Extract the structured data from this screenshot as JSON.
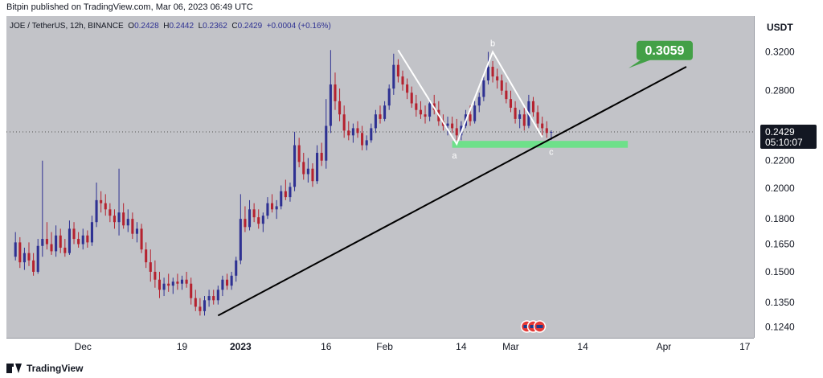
{
  "header": {
    "publisher": "Bitpin published on TradingView.com, Mar 06, 2023 06:49 UTC"
  },
  "footer": {
    "brand": "TradingView"
  },
  "colors": {
    "panel_bg": "#c2c3c8",
    "bull_body": "#2e3192",
    "bear_body": "#b5222f",
    "trendline": "#000000",
    "pattern_line": "#ffffff",
    "zone": "#6ee08a",
    "target_badge": "#43a047",
    "price_badge": "#131722"
  },
  "chart_data": {
    "type": "candlestick",
    "symbol_line": {
      "symbol": "JOE / TetherUS, 12h, BINANCE",
      "o_label": "O",
      "o_value": "0.2428",
      "h_label": "H",
      "h_value": "0.2442",
      "l_label": "L",
      "l_value": "0.2362",
      "c_label": "C",
      "c_value": "0.2429",
      "change": "+0.0004 (+0.16%)"
    },
    "y_axis": {
      "unit": "USDT",
      "ticks": [
        "0.3200",
        "0.2800",
        "0.2200",
        "0.2000",
        "0.1800",
        "0.1650",
        "0.1500",
        "0.1350",
        "0.1240"
      ],
      "tick_values": [
        0.32,
        0.28,
        0.22,
        0.2,
        0.18,
        0.165,
        0.15,
        0.135,
        0.124
      ],
      "range": [
        0.1195,
        0.362
      ]
    },
    "x_axis": {
      "ticks": [
        "Dec",
        "19",
        "2023",
        "16",
        "Feb",
        "14",
        "Mar",
        "14",
        "Apr",
        "17"
      ],
      "tick_index": [
        15,
        37,
        50,
        69,
        82,
        99,
        110,
        126,
        144,
        162
      ],
      "range": [
        -2,
        164
      ]
    },
    "last_price": {
      "value": 0.2429,
      "label": "0.2429",
      "countdown": "05:10:07"
    },
    "target": {
      "value": 0.3059,
      "label": "0.3059"
    },
    "pattern_labels": [
      "a",
      "b",
      "c"
    ],
    "pattern_points": [
      {
        "i": 85,
        "v": 0.322
      },
      {
        "i": 98,
        "v": 0.233
      },
      {
        "i": 106,
        "v": 0.32
      },
      {
        "i": 117,
        "v": 0.2385
      }
    ],
    "pattern_label_points": [
      {
        "i": 97.5,
        "v": 0.224
      },
      {
        "i": 106,
        "v": 0.33
      },
      {
        "i": 119,
        "v": 0.227
      }
    ],
    "trendline": [
      {
        "i": 45,
        "v": 0.129
      },
      {
        "i": 149,
        "v": 0.304
      }
    ],
    "support_zone": {
      "i_start": 97,
      "i_end": 136,
      "v_low": 0.23,
      "v_high": 0.2355
    },
    "candles": [
      [
        0.158,
        0.172,
        0.156,
        0.166
      ],
      [
        0.166,
        0.169,
        0.152,
        0.155
      ],
      [
        0.155,
        0.163,
        0.151,
        0.16
      ],
      [
        0.16,
        0.166,
        0.153,
        0.156
      ],
      [
        0.156,
        0.16,
        0.148,
        0.15
      ],
      [
        0.15,
        0.168,
        0.149,
        0.164
      ],
      [
        0.164,
        0.22,
        0.158,
        0.168
      ],
      [
        0.168,
        0.178,
        0.162,
        0.165
      ],
      [
        0.165,
        0.172,
        0.159,
        0.161
      ],
      [
        0.161,
        0.176,
        0.158,
        0.17
      ],
      [
        0.17,
        0.174,
        0.16,
        0.163
      ],
      [
        0.163,
        0.168,
        0.158,
        0.16
      ],
      [
        0.16,
        0.179,
        0.159,
        0.174
      ],
      [
        0.174,
        0.178,
        0.165,
        0.168
      ],
      [
        0.168,
        0.172,
        0.163,
        0.165
      ],
      [
        0.165,
        0.174,
        0.162,
        0.17
      ],
      [
        0.17,
        0.173,
        0.163,
        0.166
      ],
      [
        0.166,
        0.182,
        0.164,
        0.178
      ],
      [
        0.178,
        0.204,
        0.175,
        0.192
      ],
      [
        0.192,
        0.198,
        0.184,
        0.19
      ],
      [
        0.19,
        0.196,
        0.182,
        0.186
      ],
      [
        0.186,
        0.19,
        0.178,
        0.182
      ],
      [
        0.182,
        0.186,
        0.174,
        0.178
      ],
      [
        0.178,
        0.214,
        0.17,
        0.184
      ],
      [
        0.184,
        0.19,
        0.174,
        0.176
      ],
      [
        0.176,
        0.186,
        0.172,
        0.18
      ],
      [
        0.18,
        0.184,
        0.168,
        0.171
      ],
      [
        0.171,
        0.178,
        0.166,
        0.174
      ],
      [
        0.174,
        0.177,
        0.16,
        0.162
      ],
      [
        0.162,
        0.166,
        0.152,
        0.155
      ],
      [
        0.155,
        0.162,
        0.145,
        0.15
      ],
      [
        0.15,
        0.156,
        0.142,
        0.146
      ],
      [
        0.146,
        0.15,
        0.137,
        0.141
      ],
      [
        0.141,
        0.147,
        0.138,
        0.144
      ],
      [
        0.144,
        0.149,
        0.14,
        0.143
      ],
      [
        0.143,
        0.147,
        0.139,
        0.145
      ],
      [
        0.145,
        0.149,
        0.141,
        0.144
      ],
      [
        0.144,
        0.148,
        0.141,
        0.146
      ],
      [
        0.146,
        0.15,
        0.142,
        0.144
      ],
      [
        0.144,
        0.147,
        0.134,
        0.137
      ],
      [
        0.137,
        0.141,
        0.131,
        0.133
      ],
      [
        0.133,
        0.137,
        0.129,
        0.131
      ],
      [
        0.131,
        0.138,
        0.129,
        0.136
      ],
      [
        0.136,
        0.141,
        0.133,
        0.138
      ],
      [
        0.138,
        0.141,
        0.134,
        0.136
      ],
      [
        0.136,
        0.143,
        0.134,
        0.141
      ],
      [
        0.141,
        0.148,
        0.138,
        0.146
      ],
      [
        0.146,
        0.149,
        0.141,
        0.143
      ],
      [
        0.143,
        0.15,
        0.141,
        0.148
      ],
      [
        0.148,
        0.158,
        0.145,
        0.156
      ],
      [
        0.156,
        0.196,
        0.154,
        0.18
      ],
      [
        0.18,
        0.188,
        0.172,
        0.175
      ],
      [
        0.175,
        0.192,
        0.173,
        0.186
      ],
      [
        0.186,
        0.19,
        0.178,
        0.181
      ],
      [
        0.181,
        0.186,
        0.174,
        0.177
      ],
      [
        0.177,
        0.184,
        0.172,
        0.182
      ],
      [
        0.182,
        0.194,
        0.18,
        0.19
      ],
      [
        0.19,
        0.196,
        0.184,
        0.186
      ],
      [
        0.186,
        0.192,
        0.18,
        0.188
      ],
      [
        0.188,
        0.202,
        0.186,
        0.198
      ],
      [
        0.198,
        0.206,
        0.192,
        0.194
      ],
      [
        0.194,
        0.204,
        0.191,
        0.201
      ],
      [
        0.201,
        0.243,
        0.198,
        0.232
      ],
      [
        0.232,
        0.238,
        0.215,
        0.219
      ],
      [
        0.219,
        0.226,
        0.206,
        0.21
      ],
      [
        0.21,
        0.222,
        0.204,
        0.214
      ],
      [
        0.214,
        0.218,
        0.201,
        0.205
      ],
      [
        0.205,
        0.232,
        0.203,
        0.226
      ],
      [
        0.226,
        0.234,
        0.216,
        0.22
      ],
      [
        0.22,
        0.272,
        0.214,
        0.248
      ],
      [
        0.248,
        0.322,
        0.242,
        0.286
      ],
      [
        0.286,
        0.298,
        0.262,
        0.27
      ],
      [
        0.27,
        0.282,
        0.252,
        0.258
      ],
      [
        0.258,
        0.266,
        0.238,
        0.244
      ],
      [
        0.244,
        0.252,
        0.236,
        0.24
      ],
      [
        0.24,
        0.25,
        0.234,
        0.246
      ],
      [
        0.246,
        0.252,
        0.238,
        0.242
      ],
      [
        0.242,
        0.248,
        0.228,
        0.232
      ],
      [
        0.232,
        0.24,
        0.228,
        0.236
      ],
      [
        0.236,
        0.25,
        0.234,
        0.246
      ],
      [
        0.246,
        0.262,
        0.242,
        0.258
      ],
      [
        0.258,
        0.266,
        0.25,
        0.254
      ],
      [
        0.254,
        0.27,
        0.252,
        0.266
      ],
      [
        0.266,
        0.286,
        0.262,
        0.282
      ],
      [
        0.282,
        0.318,
        0.276,
        0.306
      ],
      [
        0.306,
        0.312,
        0.288,
        0.294
      ],
      [
        0.294,
        0.3,
        0.28,
        0.286
      ],
      [
        0.286,
        0.292,
        0.272,
        0.278
      ],
      [
        0.278,
        0.284,
        0.264,
        0.268
      ],
      [
        0.268,
        0.276,
        0.256,
        0.262
      ],
      [
        0.262,
        0.27,
        0.254,
        0.258
      ],
      [
        0.258,
        0.266,
        0.25,
        0.256
      ],
      [
        0.256,
        0.272,
        0.252,
        0.268
      ],
      [
        0.268,
        0.276,
        0.258,
        0.262
      ],
      [
        0.262,
        0.27,
        0.248,
        0.252
      ],
      [
        0.252,
        0.258,
        0.244,
        0.248
      ],
      [
        0.248,
        0.256,
        0.24,
        0.25
      ],
      [
        0.25,
        0.256,
        0.242,
        0.246
      ],
      [
        0.246,
        0.254,
        0.236,
        0.24
      ],
      [
        0.24,
        0.252,
        0.236,
        0.248
      ],
      [
        0.248,
        0.262,
        0.246,
        0.258
      ],
      [
        0.258,
        0.266,
        0.248,
        0.252
      ],
      [
        0.252,
        0.27,
        0.25,
        0.266
      ],
      [
        0.266,
        0.278,
        0.26,
        0.274
      ],
      [
        0.274,
        0.294,
        0.27,
        0.29
      ],
      [
        0.29,
        0.32,
        0.286,
        0.304
      ],
      [
        0.304,
        0.31,
        0.288,
        0.294
      ],
      [
        0.294,
        0.302,
        0.282,
        0.29
      ],
      [
        0.29,
        0.296,
        0.276,
        0.28
      ],
      [
        0.28,
        0.288,
        0.268,
        0.272
      ],
      [
        0.272,
        0.28,
        0.26,
        0.264
      ],
      [
        0.264,
        0.27,
        0.25,
        0.254
      ],
      [
        0.254,
        0.262,
        0.246,
        0.258
      ],
      [
        0.258,
        0.264,
        0.244,
        0.248
      ],
      [
        0.248,
        0.276,
        0.246,
        0.27
      ],
      [
        0.27,
        0.274,
        0.256,
        0.26
      ],
      [
        0.26,
        0.266,
        0.246,
        0.25
      ],
      [
        0.25,
        0.256,
        0.24,
        0.246
      ],
      [
        0.246,
        0.252,
        0.238,
        0.242
      ],
      [
        0.2428,
        0.2442,
        0.2362,
        0.2429
      ]
    ]
  }
}
